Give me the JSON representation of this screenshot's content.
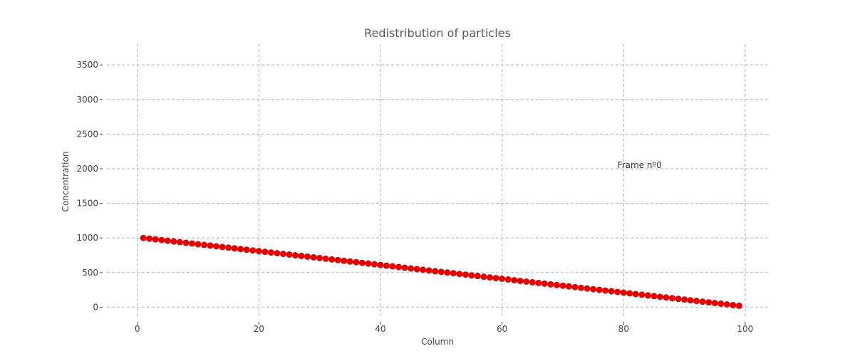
{
  "chart_data": {
    "type": "line",
    "title": "Redistribution of particles",
    "xlabel": "Column",
    "ylabel": "Concentration",
    "xlim": [
      -5,
      104
    ],
    "ylim": [
      -150,
      3800
    ],
    "xticks": [
      0,
      20,
      40,
      60,
      80,
      100
    ],
    "yticks": [
      0,
      500,
      1000,
      1500,
      2000,
      2500,
      3000,
      3500
    ],
    "grid": true,
    "annotation": {
      "text": "Frame nº0",
      "x": 79,
      "y": 2010
    },
    "colors": {
      "line": "#008000",
      "marker": "#e00000"
    },
    "series": [
      {
        "x_start": 1,
        "x_end": 99,
        "y_start": 1000,
        "y_end": 20
      }
    ]
  }
}
